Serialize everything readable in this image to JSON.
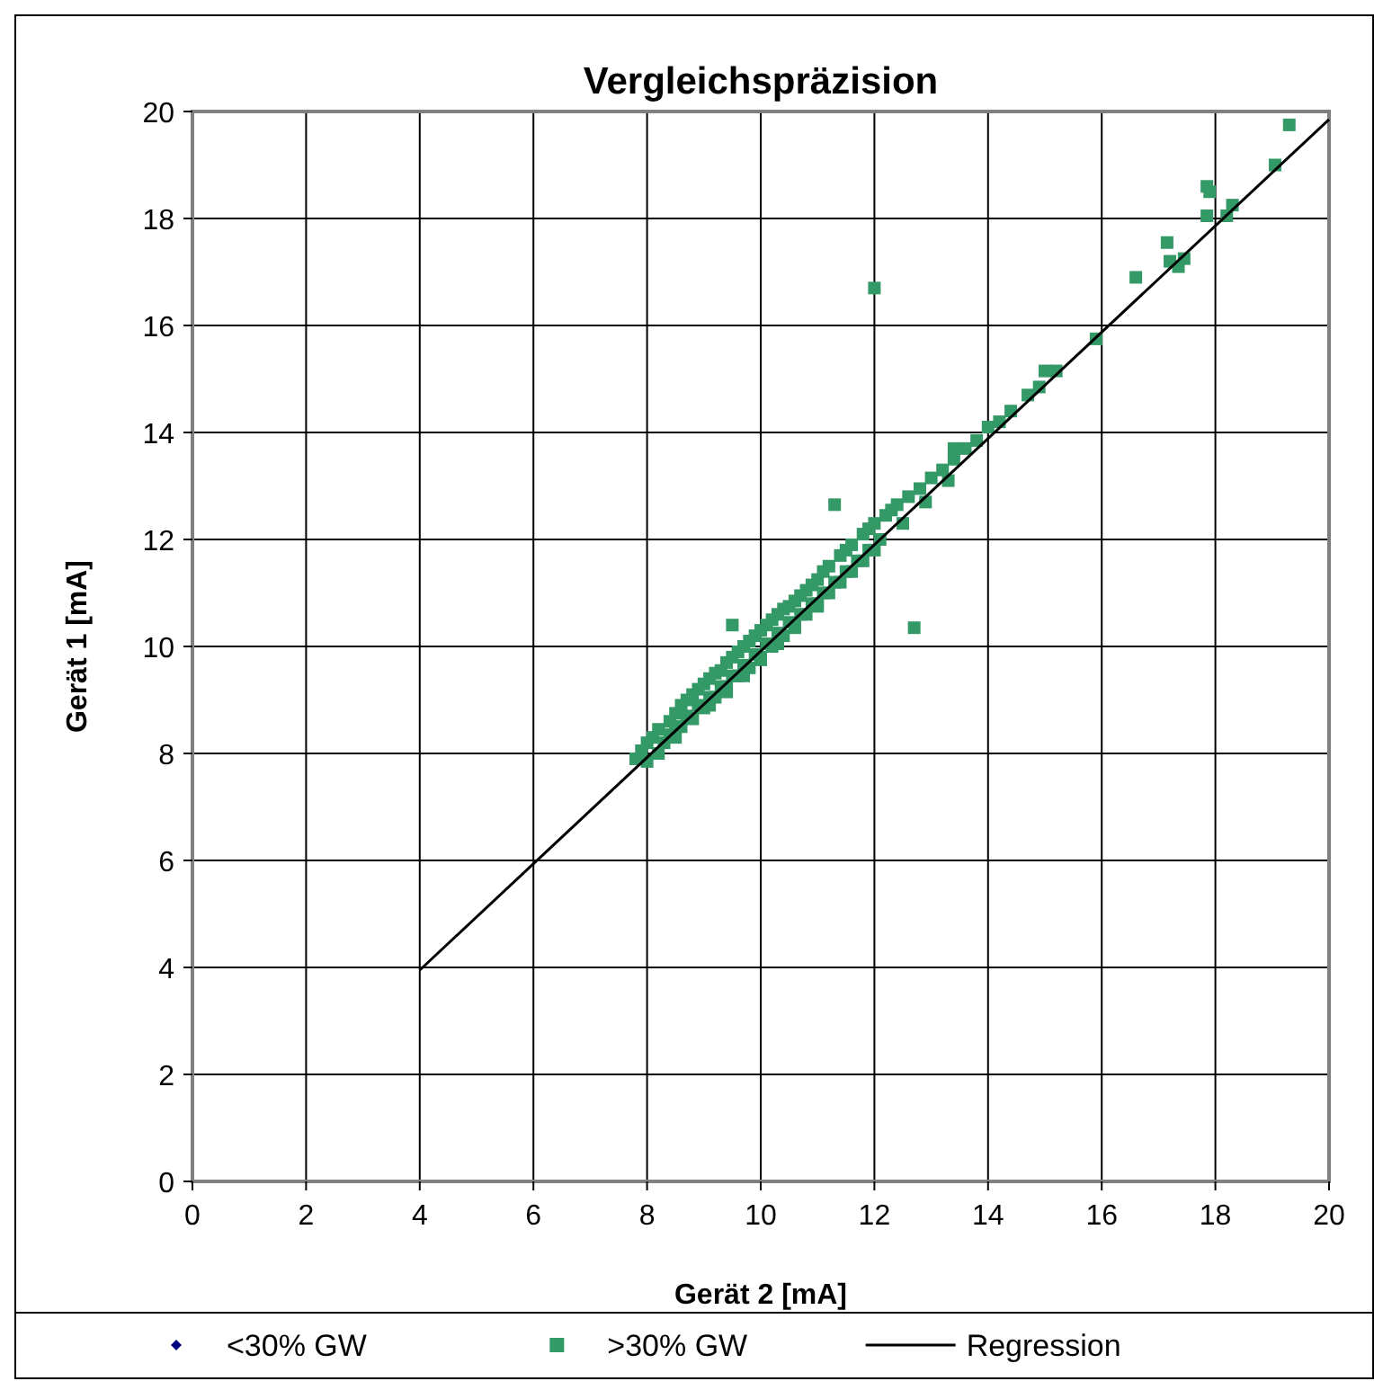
{
  "chart_data": {
    "type": "scatter",
    "title": "Vergleichspräzision",
    "xlabel": "Gerät 2 [mA]",
    "ylabel": "Gerät 1 [mA]",
    "xlim": [
      0,
      20
    ],
    "ylim": [
      0,
      20
    ],
    "xticks": [
      0,
      2,
      4,
      6,
      8,
      10,
      12,
      14,
      16,
      18,
      20
    ],
    "yticks": [
      0,
      2,
      4,
      6,
      8,
      10,
      12,
      14,
      16,
      18,
      20
    ],
    "grid": true,
    "legend": "bottom",
    "series": [
      {
        "name": "<30% GW",
        "color": "#000080",
        "marker": "diamond"
      },
      {
        "name": ">30% GW",
        "color": "#339966",
        "marker": "square",
        "x": [
          7.8,
          7.9,
          8.0,
          8.1,
          8.2,
          8.0,
          8.3,
          8.4,
          8.5,
          8.2,
          8.6,
          8.7,
          8.8,
          8.5,
          8.9,
          9.0,
          9.1,
          8.8,
          9.2,
          9.3,
          9.4,
          9.1,
          9.5,
          9.6,
          9.7,
          9.4,
          9.8,
          9.9,
          10.0,
          9.7,
          10.1,
          10.2,
          10.3,
          10.0,
          10.4,
          10.5,
          10.6,
          10.3,
          10.7,
          10.8,
          10.9,
          10.6,
          11.0,
          11.1,
          11.2,
          11.0,
          11.4,
          11.5,
          11.6,
          11.4,
          11.8,
          11.9,
          12.0,
          11.8,
          12.2,
          12.3,
          12.4,
          12.6,
          12.8,
          13.0,
          13.2,
          13.4,
          13.6,
          13.8,
          14.0,
          14.2,
          14.4,
          14.7,
          14.9,
          15.0,
          15.2,
          15.9,
          16.6,
          17.15,
          17.2,
          17.35,
          17.45,
          17.85,
          17.9,
          17.85,
          18.2,
          18.3,
          19.05,
          19.3,
          12.0,
          9.5,
          11.3,
          12.7,
          13.4,
          8.5,
          8.7,
          8.9,
          9.1,
          9.3,
          9.5,
          9.7,
          9.9,
          10.1,
          10.3,
          10.5,
          10.7,
          10.9,
          11.1,
          11.3,
          11.5,
          11.7,
          11.9,
          12.1,
          8.4,
          8.6,
          8.8,
          9.0,
          9.2,
          9.4,
          9.6,
          9.8,
          10.0,
          10.2,
          10.4,
          10.6,
          10.8,
          11.0,
          11.2,
          11.6,
          12.0,
          12.5,
          12.9,
          13.3
        ],
        "values": [
          7.9,
          8.05,
          8.2,
          8.3,
          8.45,
          7.85,
          8.2,
          8.6,
          8.75,
          8.0,
          8.9,
          9.0,
          9.1,
          8.3,
          9.2,
          9.3,
          9.4,
          8.65,
          9.5,
          9.55,
          9.7,
          8.9,
          9.8,
          9.9,
          10.0,
          9.15,
          10.1,
          10.2,
          10.3,
          9.45,
          10.4,
          10.5,
          10.6,
          9.75,
          10.7,
          10.75,
          10.85,
          10.05,
          10.95,
          11.05,
          11.15,
          10.35,
          11.25,
          11.4,
          11.5,
          10.75,
          11.7,
          11.8,
          11.9,
          11.2,
          12.1,
          12.2,
          12.3,
          11.6,
          12.45,
          12.55,
          12.65,
          12.8,
          12.95,
          13.15,
          13.3,
          13.5,
          13.7,
          13.85,
          14.1,
          14.2,
          14.4,
          14.7,
          14.85,
          15.15,
          15.15,
          15.75,
          16.9,
          17.55,
          17.2,
          17.1,
          17.25,
          18.6,
          18.5,
          18.05,
          18.05,
          18.25,
          19.0,
          19.75,
          16.7,
          10.4,
          12.65,
          10.35,
          13.7,
          8.5,
          8.7,
          8.9,
          9.05,
          9.25,
          9.45,
          9.65,
          9.85,
          10.05,
          10.25,
          10.45,
          10.6,
          10.8,
          11.0,
          11.2,
          11.4,
          11.6,
          11.8,
          12.0,
          8.35,
          8.5,
          8.65,
          8.85,
          9.05,
          9.25,
          9.45,
          9.6,
          9.8,
          10.0,
          10.2,
          10.4,
          10.6,
          10.8,
          11.0,
          11.4,
          11.8,
          12.3,
          12.7,
          13.1
        ]
      },
      {
        "name": "Regression",
        "type": "line",
        "color": "#000000",
        "marker": "none",
        "x": [
          4,
          20
        ],
        "values": [
          3.95,
          19.85
        ]
      }
    ]
  }
}
